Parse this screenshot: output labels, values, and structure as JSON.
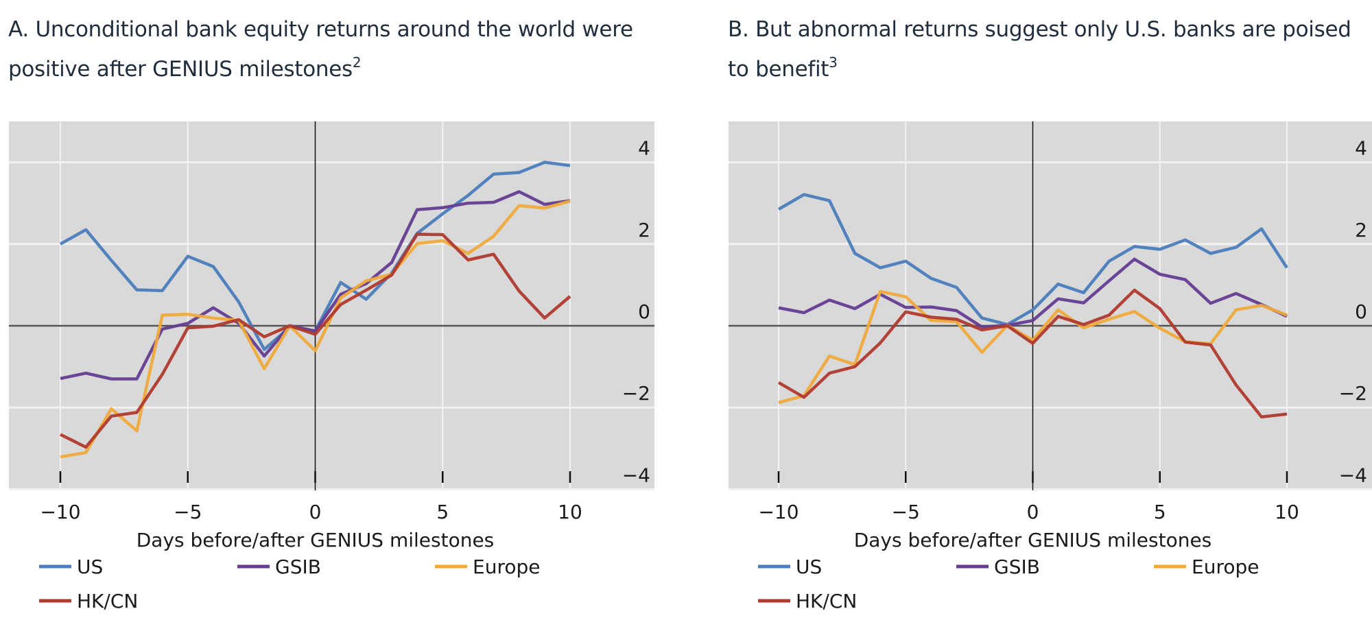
{
  "panels": [
    {
      "title_lines": [
        "A. Unconditional bank equity returns around the world were",
        "positive after GENIUS milestones"
      ],
      "footnote": "2"
    },
    {
      "title_lines": [
        "B. But abnormal returns suggest only U.S. banks are poised",
        "to benefit"
      ],
      "footnote": "3"
    }
  ],
  "chart_data": [
    {
      "type": "line",
      "title": "A. Unconditional bank equity returns around the world were positive after GENIUS milestones",
      "xlabel": "Days before/after GENIUS milestones",
      "ylabel": "",
      "xlim": [
        -12,
        12
      ],
      "ylim": [
        -4,
        5
      ],
      "xticks": [
        -10,
        -5,
        0,
        5,
        10
      ],
      "xtick_labels": [
        "−10",
        "−5",
        "0",
        "5",
        "10"
      ],
      "yticks": [
        4,
        2,
        0,
        -2,
        -4
      ],
      "ytick_labels": [
        "4",
        "2",
        "0",
        "−2",
        "−4"
      ],
      "grid": true,
      "legend_position": "bottom",
      "x": [
        -10,
        -9,
        -8,
        -7,
        -6,
        -5,
        -4,
        -3,
        -2,
        -1,
        0,
        1,
        2,
        3,
        4,
        5,
        6,
        7,
        8,
        9,
        10
      ],
      "series": [
        {
          "name": "US",
          "color": "#4a7dbd",
          "values": [
            2.0,
            2.35,
            1.6,
            0.88,
            0.86,
            1.7,
            1.45,
            0.58,
            -0.58,
            -0.03,
            -0.13,
            1.06,
            0.65,
            1.29,
            2.26,
            2.74,
            3.19,
            3.71,
            3.75,
            4.0,
            3.92
          ]
        },
        {
          "name": "GSIB",
          "color": "#653d91",
          "values": [
            -1.29,
            -1.16,
            -1.3,
            -1.3,
            -0.08,
            0.06,
            0.44,
            0.06,
            -0.74,
            0.0,
            -0.13,
            0.77,
            1.03,
            1.55,
            2.84,
            2.89,
            3.0,
            3.02,
            3.28,
            2.97,
            3.06
          ]
        },
        {
          "name": "Europe",
          "color": "#f0aa3a",
          "values": [
            -3.21,
            -3.1,
            -2.03,
            -2.57,
            0.26,
            0.28,
            0.19,
            0.13,
            -1.05,
            0.0,
            -0.61,
            0.68,
            1.1,
            1.26,
            2.01,
            2.08,
            1.77,
            2.19,
            2.94,
            2.88,
            3.05
          ]
        },
        {
          "name": "HK/CN",
          "color": "#b03a2e",
          "values": [
            -2.66,
            -2.97,
            -2.21,
            -2.12,
            -1.19,
            -0.05,
            -0.01,
            0.15,
            -0.27,
            0.0,
            -0.21,
            0.52,
            0.87,
            1.24,
            2.24,
            2.23,
            1.61,
            1.75,
            0.85,
            0.19,
            0.72
          ]
        }
      ]
    },
    {
      "type": "line",
      "title": "B. But abnormal returns suggest only U.S. banks are poised to benefit",
      "xlabel": "Days before/after GENIUS milestones",
      "ylabel": "",
      "xlim": [
        -12,
        12
      ],
      "ylim": [
        -4,
        5
      ],
      "xticks": [
        -10,
        -5,
        0,
        5,
        10
      ],
      "xtick_labels": [
        "−10",
        "−5",
        "0",
        "5",
        "10"
      ],
      "yticks": [
        4,
        2,
        0,
        -2,
        -4
      ],
      "ytick_labels": [
        "4",
        "2",
        "0",
        "−2",
        "−4"
      ],
      "grid": true,
      "legend_position": "bottom",
      "x": [
        -10,
        -9,
        -8,
        -7,
        -6,
        -5,
        -4,
        -3,
        -2,
        -1,
        0,
        1,
        2,
        3,
        4,
        5,
        6,
        7,
        8,
        9,
        10
      ],
      "series": [
        {
          "name": "US",
          "color": "#4a7dbd",
          "values": [
            2.85,
            3.21,
            3.06,
            1.77,
            1.42,
            1.58,
            1.16,
            0.94,
            0.19,
            0.03,
            0.39,
            1.02,
            0.81,
            1.58,
            1.94,
            1.87,
            2.1,
            1.77,
            1.92,
            2.37,
            1.42
          ]
        },
        {
          "name": "GSIB",
          "color": "#653d91",
          "values": [
            0.44,
            0.32,
            0.63,
            0.42,
            0.77,
            0.45,
            0.46,
            0.37,
            -0.03,
            0.01,
            0.13,
            0.66,
            0.56,
            1.1,
            1.63,
            1.26,
            1.13,
            0.55,
            0.79,
            0.52,
            0.23
          ]
        },
        {
          "name": "Europe",
          "color": "#f0aa3a",
          "values": [
            -1.88,
            -1.71,
            -0.74,
            -0.95,
            0.84,
            0.71,
            0.13,
            0.1,
            -0.65,
            0.01,
            -0.35,
            0.39,
            -0.05,
            0.16,
            0.35,
            -0.06,
            -0.39,
            -0.44,
            0.39,
            0.5,
            0.26
          ]
        },
        {
          "name": "HK/CN",
          "color": "#b03a2e",
          "values": [
            -1.39,
            -1.75,
            -1.16,
            -1.0,
            -0.42,
            0.34,
            0.21,
            0.16,
            -0.1,
            0.0,
            -0.43,
            0.23,
            0.03,
            0.26,
            0.87,
            0.42,
            -0.4,
            -0.47,
            -1.45,
            -2.23,
            -2.16
          ]
        }
      ]
    }
  ]
}
